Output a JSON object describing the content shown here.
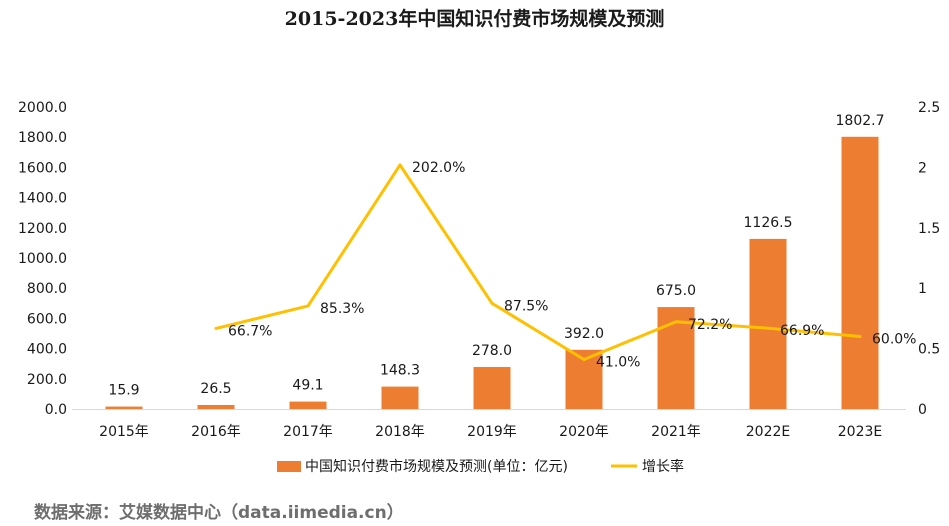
{
  "chart_data": {
    "type": "bar",
    "title": "2015-2023年中国知识付费市场规模及预测",
    "categories": [
      "2015年",
      "2016年",
      "2017年",
      "2018年",
      "2019年",
      "2020年",
      "2021年",
      "2022E",
      "2023E"
    ],
    "series": [
      {
        "name": "中国知识付费市场规模及预测(单位：亿元)",
        "type": "bar",
        "axis": "left",
        "color": "#ED7D31",
        "values": [
          15.9,
          26.5,
          49.1,
          148.3,
          278.0,
          392.0,
          675.0,
          1126.5,
          1802.7
        ],
        "labels": [
          "15.9",
          "26.5",
          "49.1",
          "148.3",
          "278.0",
          "392.0",
          "675.0",
          "1126.5",
          "1802.7"
        ]
      },
      {
        "name": "增长率",
        "type": "line",
        "axis": "right",
        "color": "#FFC000",
        "values": [
          null,
          0.667,
          0.853,
          2.02,
          0.875,
          0.41,
          0.722,
          0.669,
          0.6
        ],
        "labels": [
          null,
          "66.7%",
          "85.3%",
          "202.0%",
          "87.5%",
          "41.0%",
          "72.2%",
          "66.9%",
          "60.0%"
        ]
      }
    ],
    "y_left": {
      "ylim": [
        0,
        2000
      ],
      "ticks": [
        "0.0",
        "200.0",
        "400.0",
        "600.0",
        "800.0",
        "1000.0",
        "1200.0",
        "1400.0",
        "1600.0",
        "1800.0",
        "2000.0"
      ]
    },
    "y_right": {
      "ylim": [
        0,
        2.5
      ],
      "ticks": [
        "0",
        "0.5",
        "1",
        "1.5",
        "2",
        "2.5"
      ]
    },
    "grid": false,
    "legend_position": "bottom"
  },
  "source": "数据来源：艾媒数据中心（data.iimedia.cn）"
}
